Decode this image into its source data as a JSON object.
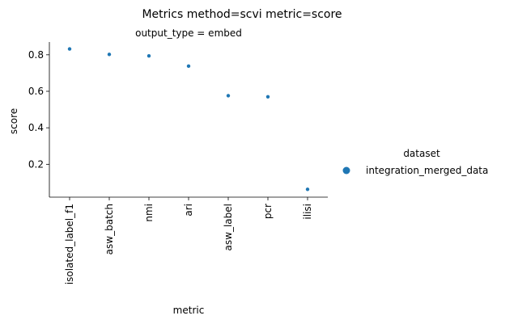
{
  "chart_data": {
    "type": "scatter",
    "suptitle": "Metrics method=scvi metric=score",
    "subtitle": "output_type = embed",
    "xlabel": "metric",
    "ylabel": "score",
    "categories": [
      "isolated_label_f1",
      "asw_batch",
      "nmi",
      "ari",
      "asw_label",
      "pcr",
      "ilisi"
    ],
    "ylim": [
      0.02,
      0.87
    ],
    "yticks": [
      0.2,
      0.4,
      0.6,
      0.8
    ],
    "ytick_labels": [
      "0.2",
      "0.4",
      "0.6",
      "0.8"
    ],
    "grid": false,
    "series": [
      {
        "name": "integration_merged_data",
        "color": "#1f77b4",
        "values": [
          0.832,
          0.802,
          0.794,
          0.738,
          0.576,
          0.57,
          0.063
        ]
      }
    ],
    "legend": {
      "title": "dataset",
      "placement": "right",
      "entries": [
        "integration_merged_data"
      ]
    }
  }
}
